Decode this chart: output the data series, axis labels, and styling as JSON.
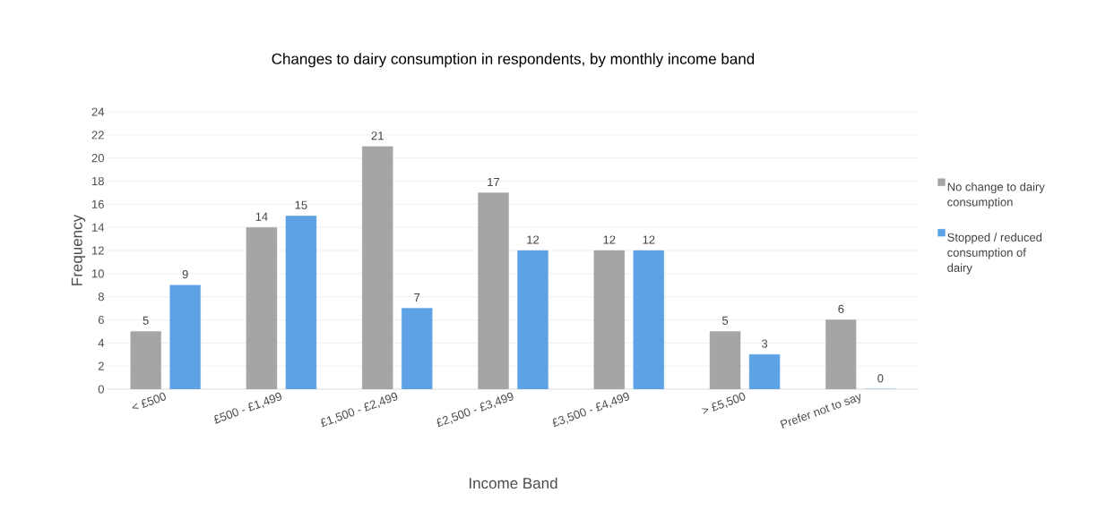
{
  "chart_data": {
    "type": "bar",
    "title": "Changes to dairy consumption in respondents, by monthly income band",
    "xlabel": "Income Band",
    "ylabel": "Frequency",
    "categories": [
      "< £500",
      "£500 - £1,499",
      "£1,500 - £2,499",
      "£2,500 - £3,499",
      "£3,500 - £4,499",
      "> £5,500",
      "Prefer not to say"
    ],
    "series": [
      {
        "name": "No change to dairy consumption",
        "color": "#a5a5a5",
        "values": [
          5,
          14,
          21,
          17,
          12,
          5,
          6
        ]
      },
      {
        "name": "Stopped / reduced consumption of dairy",
        "color": "#5ea2e6",
        "values": [
          9,
          15,
          7,
          12,
          12,
          3,
          0
        ]
      }
    ],
    "ylim": [
      0,
      24
    ],
    "yticks": [
      0,
      2,
      4,
      6,
      8,
      10,
      12,
      14,
      16,
      18,
      20,
      22,
      24
    ],
    "grid": "y",
    "legend": "right",
    "data_labels": true
  }
}
